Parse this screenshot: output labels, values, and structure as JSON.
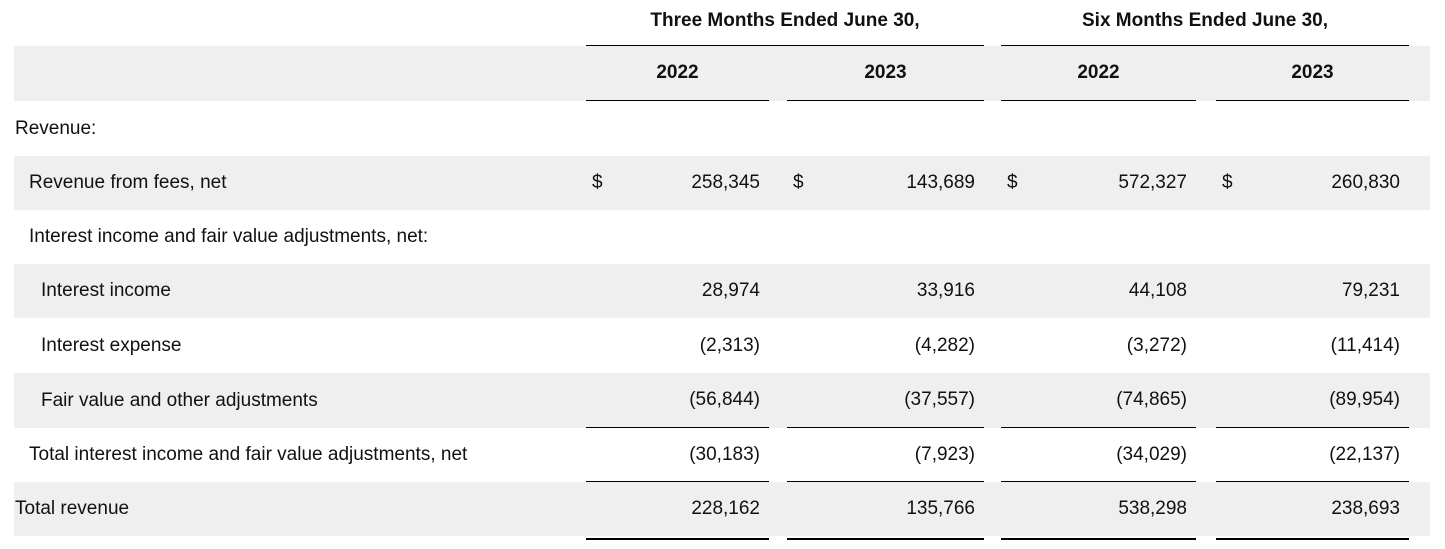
{
  "table": {
    "colors": {
      "shaded": "#efefef",
      "rule": "#000000",
      "text": "#111111"
    },
    "col_groups": [
      {
        "label": "Three Months Ended June 30,",
        "years": [
          "2022",
          "2023"
        ]
      },
      {
        "label": "Six Months Ended June 30,",
        "years": [
          "2022",
          "2023"
        ]
      }
    ],
    "rows": [
      {
        "label": "Revenue:",
        "values": [
          "",
          "",
          "",
          ""
        ]
      },
      {
        "label": "Revenue from fees, net",
        "currency": "$",
        "values": [
          "258,345",
          "143,689",
          "572,327",
          "260,830"
        ]
      },
      {
        "label": "Interest income and fair value adjustments, net:",
        "values": [
          "",
          "",
          "",
          ""
        ]
      },
      {
        "label": "Interest income",
        "values": [
          "28,974",
          "33,916",
          "44,108",
          "79,231"
        ]
      },
      {
        "label": "Interest expense",
        "values": [
          "(2,313)",
          "(4,282)",
          "(3,272)",
          "(11,414)"
        ]
      },
      {
        "label": "Fair value and other adjustments",
        "values": [
          "(56,844)",
          "(37,557)",
          "(74,865)",
          "(89,954)"
        ]
      },
      {
        "label": "Total interest income and fair value adjustments, net",
        "values": [
          "(30,183)",
          "(7,923)",
          "(34,029)",
          "(22,137)"
        ]
      },
      {
        "label": "Total revenue",
        "values": [
          "228,162",
          "135,766",
          "538,298",
          "238,693"
        ]
      }
    ]
  }
}
